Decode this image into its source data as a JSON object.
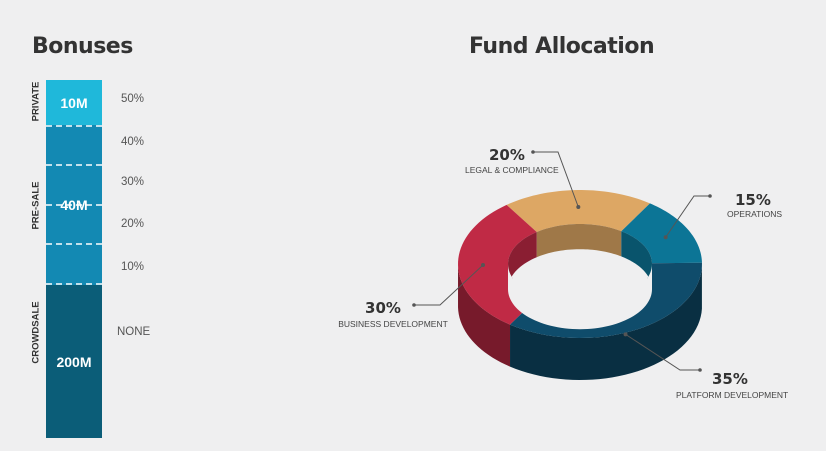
{
  "bonuses": {
    "title": "Bonuses",
    "stages": [
      {
        "label": "PRIVATE",
        "amount": "10M"
      },
      {
        "label": "PRE-SALE",
        "amount": "40M"
      },
      {
        "label": "CROWDSALE",
        "amount": "200M"
      }
    ],
    "percentages": [
      "50%",
      "40%",
      "30%",
      "20%",
      "10%",
      "NONE"
    ]
  },
  "fund_allocation": {
    "title": "Fund Allocation"
  },
  "chart_data": {
    "type": "pie",
    "title": "Fund Allocation",
    "slices": [
      {
        "label": "LEGAL & COMPLIANCE",
        "value": 20,
        "display": "20%",
        "color": "#dda764"
      },
      {
        "label": "OPERATIONS",
        "value": 15,
        "display": "15%",
        "color": "#0c7596"
      },
      {
        "label": "PLATFORM DEVELOPMENT",
        "value": 35,
        "display": "35%",
        "color": "#0f4c6b"
      },
      {
        "label": "BUSINESS DEVELOPMENT",
        "value": 30,
        "display": "30%",
        "color": "#c02a45"
      }
    ]
  }
}
